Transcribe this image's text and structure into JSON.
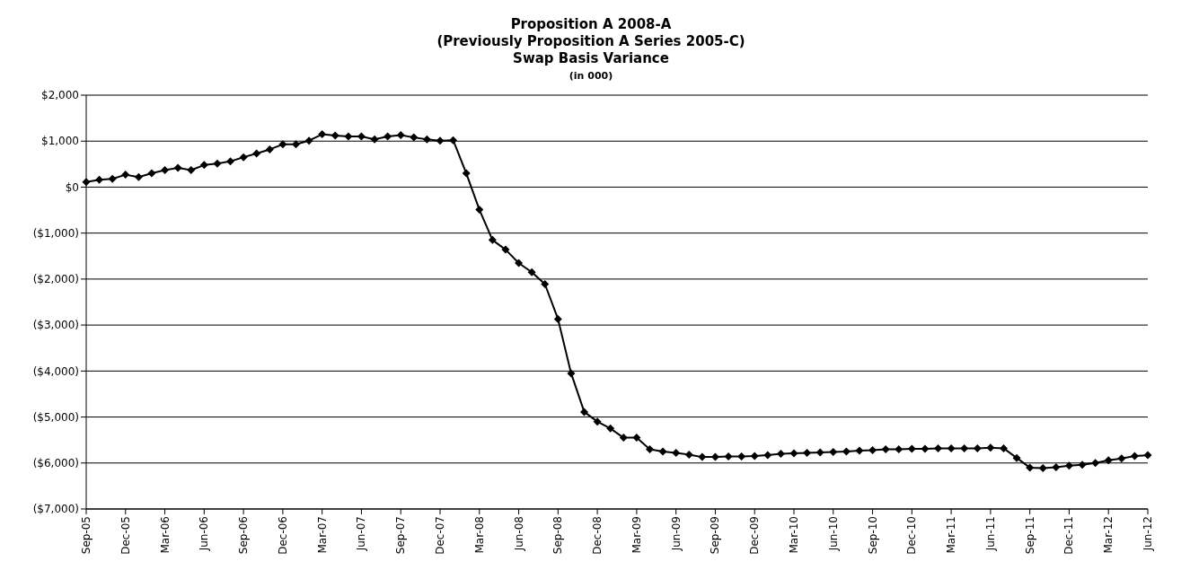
{
  "chart_data": {
    "type": "line",
    "title": "Proposition A 2008-A\n(Previously Proposition A Series 2005-C)\nSwap Basis Variance",
    "subtitle": "(in 000)",
    "categories": [
      "Sep-05",
      null,
      null,
      "Dec-05",
      null,
      null,
      "Mar-06",
      null,
      null,
      "Jun-06",
      null,
      null,
      "Sep-06",
      null,
      null,
      "Dec-06",
      null,
      null,
      "Mar-07",
      null,
      null,
      "Jun-07",
      null,
      null,
      "Sep-07",
      null,
      null,
      "Dec-07",
      null,
      null,
      "Mar-08",
      null,
      null,
      "Jun-08",
      null,
      null,
      "Sep-08",
      null,
      null,
      "Dec-08",
      null,
      null,
      "Mar-09",
      null,
      null,
      "Jun-09",
      null,
      null,
      "Sep-09",
      null,
      null,
      "Dec-09",
      null,
      null,
      "Mar-10",
      null,
      null,
      "Jun-10",
      null,
      null,
      "Sep-10",
      null,
      null,
      "Dec-10",
      null,
      null,
      "Mar-11",
      null,
      null,
      "Jun-11",
      null,
      null,
      "Sep-11",
      null,
      null,
      "Dec-11",
      null,
      null,
      "Mar-12",
      null,
      null,
      "Jun-12"
    ],
    "series": [
      {
        "color": "#000000",
        "values": [
          110,
          160,
          180,
          270,
          220,
          300,
          370,
          420,
          370,
          480,
          510,
          560,
          650,
          730,
          820,
          930,
          930,
          1010,
          1150,
          1120,
          1100,
          1100,
          1040,
          1100,
          1130,
          1080,
          1040,
          1010,
          1020,
          300,
          -490,
          -1150,
          -1360,
          -1650,
          -1850,
          -2110,
          -2870,
          -4050,
          -4890,
          -5100,
          -5250,
          -5450,
          -5450,
          -5700,
          -5750,
          -5780,
          -5820,
          -5870,
          -5870,
          -5860,
          -5860,
          -5850,
          -5830,
          -5800,
          -5790,
          -5780,
          -5770,
          -5760,
          -5750,
          -5730,
          -5720,
          -5700,
          -5700,
          -5690,
          -5690,
          -5680,
          -5680,
          -5680,
          -5680,
          -5670,
          -5680,
          -5890,
          -6100,
          -6110,
          -6090,
          -6060,
          -6040,
          -6000,
          -5940,
          -5900,
          -5850,
          -5830
        ]
      }
    ],
    "ylim": [
      -7000,
      2000
    ],
    "yticks": [
      {
        "value": 2000,
        "label": "$2,000"
      },
      {
        "value": 1000,
        "label": "$1,000"
      },
      {
        "value": 0,
        "label": "$0"
      },
      {
        "value": -1000,
        "label": "($1,000)"
      },
      {
        "value": -2000,
        "label": "($2,000)"
      },
      {
        "value": -3000,
        "label": "($3,000)"
      },
      {
        "value": -4000,
        "label": "($4,000)"
      },
      {
        "value": -5000,
        "label": "($5,000)"
      },
      {
        "value": -6000,
        "label": "($6,000)"
      },
      {
        "value": -7000,
        "label": "($7,000)"
      }
    ],
    "grid": "y",
    "marker": "diamond",
    "line_style": "solid"
  }
}
